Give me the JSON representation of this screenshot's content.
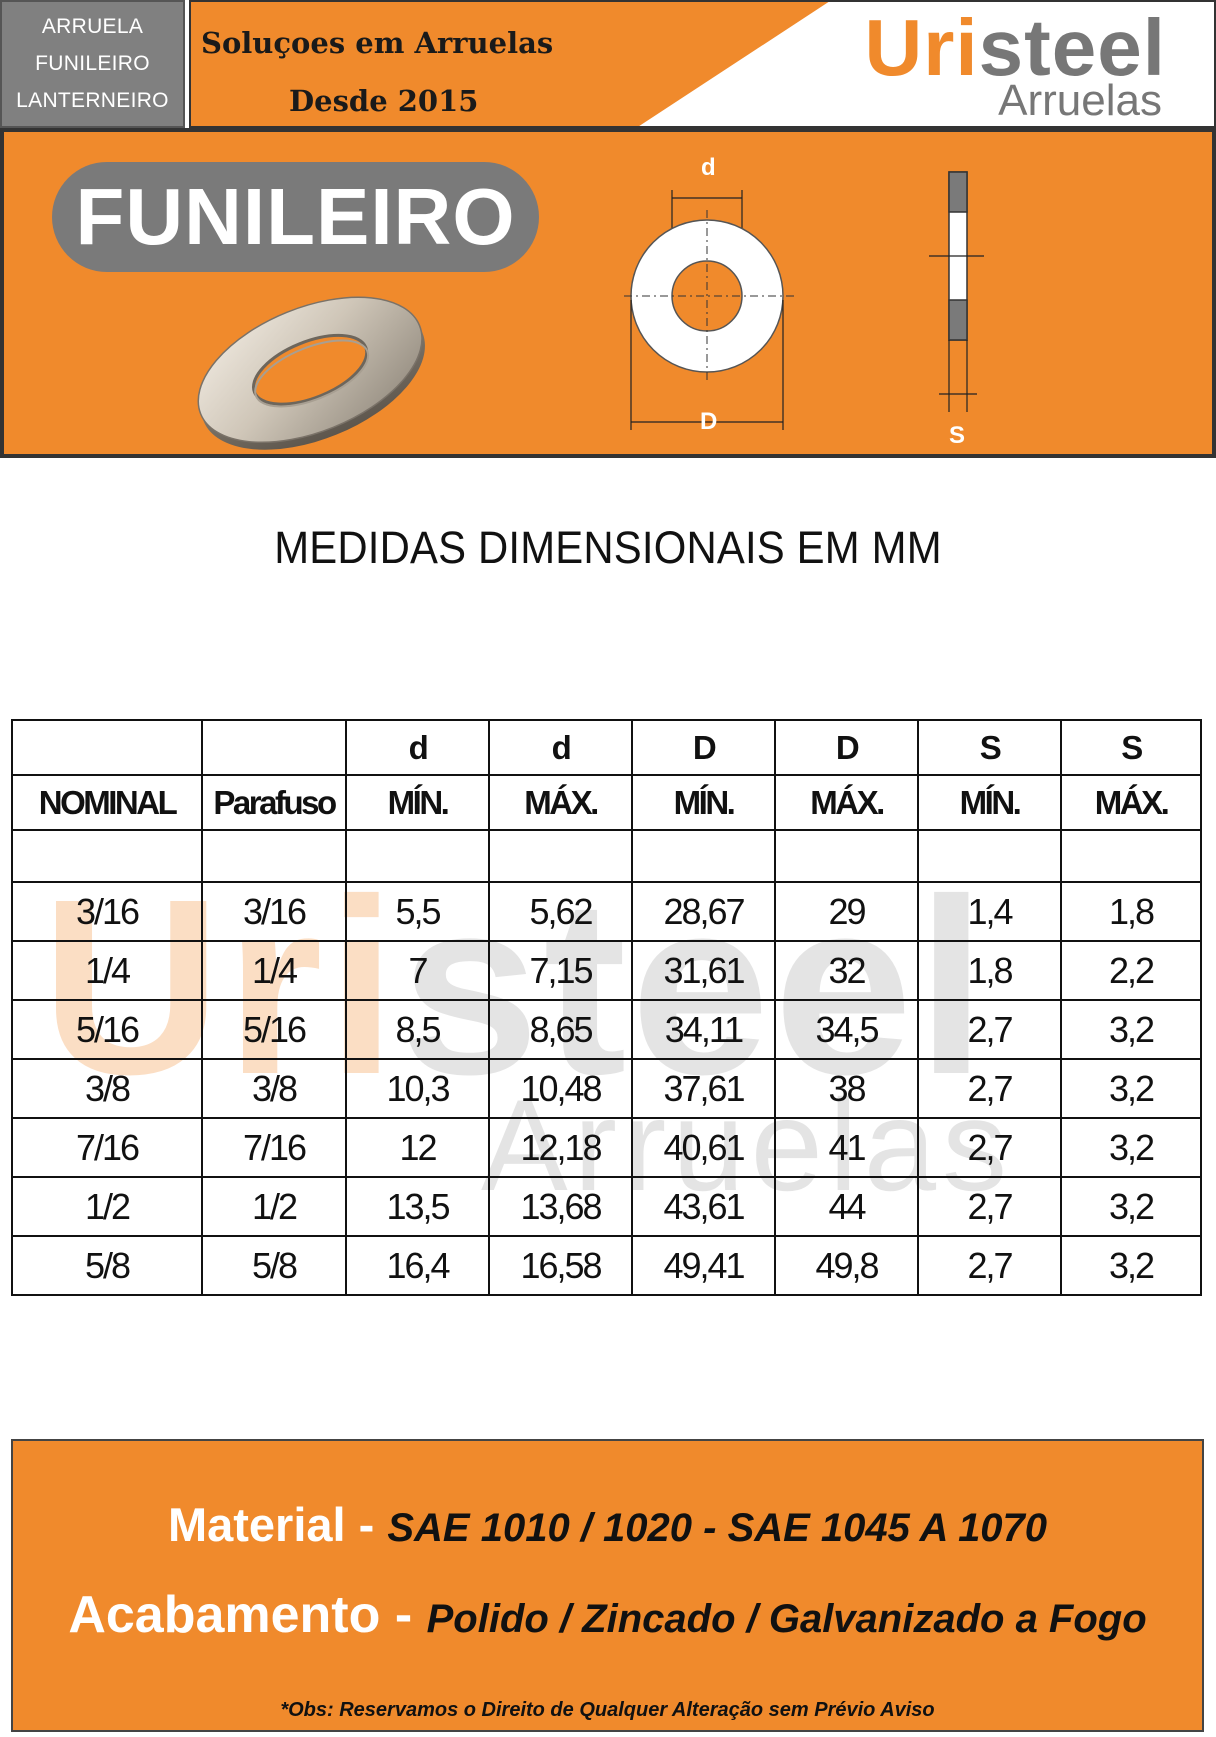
{
  "header": {
    "tag_lines": [
      "ARRUELA",
      "FUNILEIRO",
      "LANTERNEIRO"
    ],
    "slogan_line1": "Soluçoes em Arruelas",
    "slogan_line2": "Desde 2015",
    "brand_accent": "Uri",
    "brand_rest": "steel",
    "brand_sub": "Arruelas"
  },
  "hero": {
    "product_title": "FUNILEIRO",
    "dim_inner": "d",
    "dim_outer": "D",
    "dim_thickness": "S"
  },
  "document": {
    "title": "MEDIDAS DIMENSIONAIS EM MM"
  },
  "table": {
    "header_row1": [
      "",
      "",
      "d",
      "d",
      "D",
      "D",
      "S",
      "S"
    ],
    "header_row2": [
      "NOMINAL",
      "Parafuso",
      "MÍN.",
      "MÁX.",
      "MÍN.",
      "MÁX.",
      "MÍN.",
      "MÁX."
    ],
    "rows": [
      [
        "3/16",
        "3/16",
        "5,5",
        "5,62",
        "28,67",
        "29",
        "1,4",
        "1,8"
      ],
      [
        "1/4",
        "1/4",
        "7",
        "7,15",
        "31,61",
        "32",
        "1,8",
        "2,2"
      ],
      [
        "5/16",
        "5/16",
        "8,5",
        "8,65",
        "34,11",
        "34,5",
        "2,7",
        "3,2"
      ],
      [
        "3/8",
        "3/8",
        "10,3",
        "10,48",
        "37,61",
        "38",
        "2,7",
        "3,2"
      ],
      [
        "7/16",
        "7/16",
        "12",
        "12,18",
        "40,61",
        "41",
        "2,7",
        "3,2"
      ],
      [
        "1/2",
        "1/2",
        "13,5",
        "13,68",
        "43,61",
        "44",
        "2,7",
        "3,2"
      ],
      [
        "5/8",
        "5/8",
        "16,4",
        "16,58",
        "49,41",
        "49,8",
        "2,7",
        "3,2"
      ]
    ]
  },
  "watermark": {
    "accent": "Uri",
    "rest": "steel",
    "sub": "Arruelas"
  },
  "footer": {
    "material_label": "Material - ",
    "material_value": "SAE 1010 / 1020 - SAE 1045 A 1070",
    "finish_label": "Acabamento - ",
    "finish_value": "Polido / Zincado / Galvanizado a Fogo",
    "note": "*Obs: Reservamos o Direito de Qualquer Alteração sem Prévio Aviso"
  },
  "colors": {
    "orange": "#f08a2c",
    "gray": "#7a7a7a",
    "dark": "#111111"
  }
}
